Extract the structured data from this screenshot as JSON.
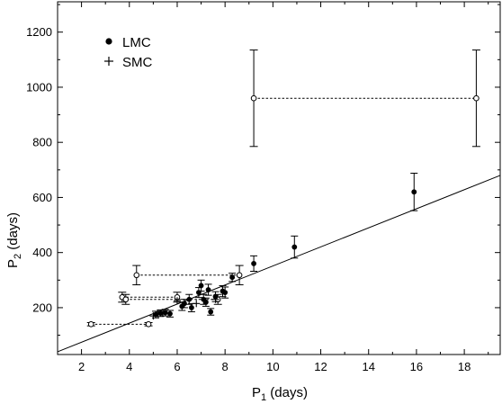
{
  "chart_data": {
    "type": "scatter",
    "title": "",
    "xlabel_main": "P",
    "xlabel_sub": "1",
    "xlabel_unit": " (days)",
    "ylabel_main": "P",
    "ylabel_sub": "2",
    "ylabel_unit": " (days)",
    "xlim": [
      1,
      19.5
    ],
    "ylim": [
      30,
      1310
    ],
    "x_ticks": [
      2,
      4,
      6,
      8,
      10,
      12,
      14,
      16,
      18
    ],
    "y_ticks": [
      200,
      400,
      600,
      800,
      1000,
      1200
    ],
    "grid": false,
    "legend_position": "top-left",
    "fit_line": {
      "x": [
        1.0,
        19.5
      ],
      "y": [
        40,
        680
      ]
    },
    "series": [
      {
        "name": "LMC",
        "marker": "filled-circle",
        "points": [
          {
            "x": 5.1,
            "y": 175,
            "err": 12
          },
          {
            "x": 5.3,
            "y": 180,
            "err": 12
          },
          {
            "x": 5.5,
            "y": 182,
            "err": 12
          },
          {
            "x": 5.7,
            "y": 178,
            "err": 12
          },
          {
            "x": 6.2,
            "y": 205,
            "err": 15
          },
          {
            "x": 6.3,
            "y": 215,
            "err": 15
          },
          {
            "x": 6.5,
            "y": 230,
            "err": 18
          },
          {
            "x": 6.6,
            "y": 200,
            "err": 15
          },
          {
            "x": 6.9,
            "y": 255,
            "err": 18
          },
          {
            "x": 7.0,
            "y": 280,
            "err": 20
          },
          {
            "x": 7.1,
            "y": 230,
            "err": 18
          },
          {
            "x": 7.2,
            "y": 220,
            "err": 15
          },
          {
            "x": 7.3,
            "y": 265,
            "err": 20
          },
          {
            "x": 7.4,
            "y": 185,
            "err": 12
          },
          {
            "x": 7.6,
            "y": 240,
            "err": 18
          },
          {
            "x": 7.9,
            "y": 260,
            "err": 20
          },
          {
            "x": 8.0,
            "y": 255,
            "err": 20
          },
          {
            "x": 8.3,
            "y": 310,
            "err": 15
          },
          {
            "x": 9.2,
            "y": 360,
            "err": 28
          },
          {
            "x": 10.9,
            "y": 420,
            "err": 40
          },
          {
            "x": 15.9,
            "y": 620,
            "err": 68
          }
        ]
      },
      {
        "name": "SMC",
        "marker": "plus",
        "points": [
          {
            "x": 5.0,
            "y": 170
          },
          {
            "x": 5.2,
            "y": 178
          },
          {
            "x": 5.4,
            "y": 180
          },
          {
            "x": 6.0,
            "y": 225
          },
          {
            "x": 6.8,
            "y": 215
          },
          {
            "x": 7.6,
            "y": 230
          }
        ]
      }
    ],
    "paired_open": [
      {
        "x1": 9.2,
        "x2": 18.5,
        "y": 960,
        "err": 175
      },
      {
        "x1": 4.3,
        "x2": 8.6,
        "y": 318,
        "err": 35
      },
      {
        "x1": 3.7,
        "x2": 6.0,
        "y": 238,
        "err": 18
      },
      {
        "x1": 3.85,
        "x2": 7.7,
        "y": 230,
        "err": 18
      },
      {
        "x1": 2.4,
        "x2": 4.8,
        "y": 140,
        "err": 6
      }
    ]
  }
}
